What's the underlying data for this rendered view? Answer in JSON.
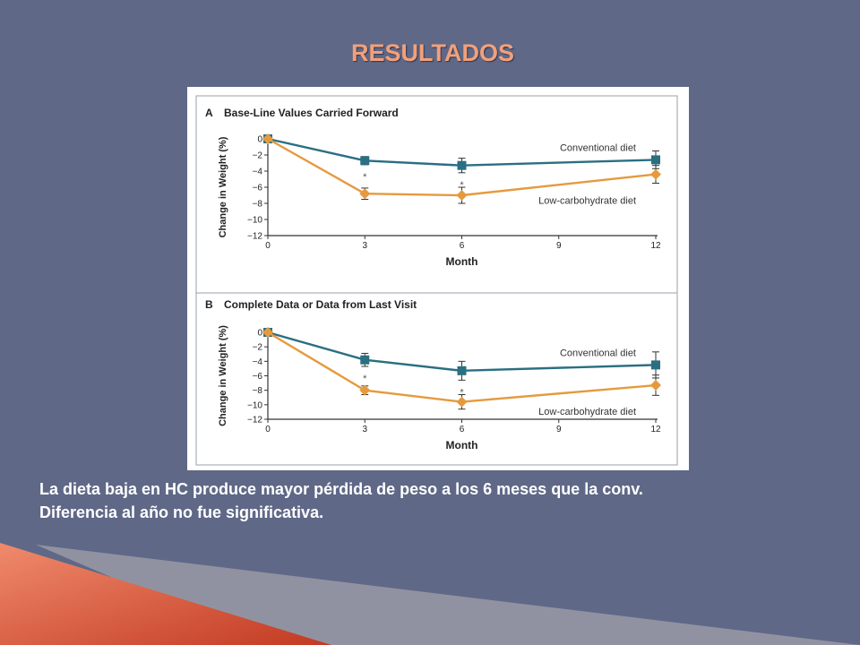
{
  "slide": {
    "title": "RESULTADOS",
    "caption_line1": "La dieta baja en HC produce mayor pérdida de peso a los 6 meses que la conv.",
    "caption_line2": "Diferencia al año no fue significativa."
  },
  "colors": {
    "background": "#5f6887",
    "title": "#f2a07a",
    "conventional": "#2a6f82",
    "low_carb": "#e59a3e",
    "panel_border": "#9aa0a8"
  },
  "chart_data": [
    {
      "type": "line",
      "panel_label": "A",
      "title": "Base-Line Values Carried Forward",
      "xlabel": "Month",
      "ylabel": "Change in Weight (%)",
      "xlim": [
        0,
        12
      ],
      "ylim": [
        -12,
        0
      ],
      "xticks": [
        0,
        3,
        6,
        9,
        12
      ],
      "yticks": [
        0,
        -2,
        -4,
        -6,
        -8,
        -10,
        -12
      ],
      "ytick_labels": [
        "0",
        "−2",
        "−4",
        "−6",
        "−8",
        "−10",
        "−12"
      ],
      "series": [
        {
          "name": "Conventional diet",
          "marker": "square",
          "x": [
            0,
            3,
            6,
            12
          ],
          "y": [
            0,
            -2.7,
            -3.3,
            -2.6
          ],
          "err": [
            0,
            0.5,
            0.9,
            1.1
          ]
        },
        {
          "name": "Low-carbohydrate diet",
          "marker": "diamond",
          "x": [
            0,
            3,
            6,
            12
          ],
          "y": [
            0,
            -6.8,
            -7.0,
            -4.4
          ],
          "err": [
            0,
            0.7,
            1.0,
            1.1
          ]
        }
      ],
      "annotations": [
        {
          "text": "*",
          "x": 3
        },
        {
          "text": "*",
          "x": 6
        }
      ]
    },
    {
      "type": "line",
      "panel_label": "B",
      "title": "Complete Data or Data from Last Visit",
      "xlabel": "Month",
      "ylabel": "Change in Weight (%)",
      "xlim": [
        0,
        12
      ],
      "ylim": [
        -12,
        0
      ],
      "xticks": [
        0,
        3,
        6,
        9,
        12
      ],
      "yticks": [
        0,
        -2,
        -4,
        -6,
        -8,
        -10,
        -12
      ],
      "ytick_labels": [
        "0",
        "−2",
        "−4",
        "−6",
        "−8",
        "−10",
        "−12"
      ],
      "series": [
        {
          "name": "Conventional diet",
          "marker": "square",
          "x": [
            0,
            3,
            6,
            12
          ],
          "y": [
            0,
            -3.8,
            -5.3,
            -4.5
          ],
          "err": [
            0,
            0.9,
            1.3,
            1.8
          ]
        },
        {
          "name": "Low-carbohydrate diet",
          "marker": "diamond",
          "x": [
            0,
            3,
            6,
            12
          ],
          "y": [
            0,
            -8.0,
            -9.6,
            -7.3
          ],
          "err": [
            0,
            0.6,
            1.0,
            1.4
          ]
        }
      ],
      "annotations": [
        {
          "text": "*",
          "x": 3
        },
        {
          "text": "*",
          "x": 6
        }
      ]
    }
  ]
}
